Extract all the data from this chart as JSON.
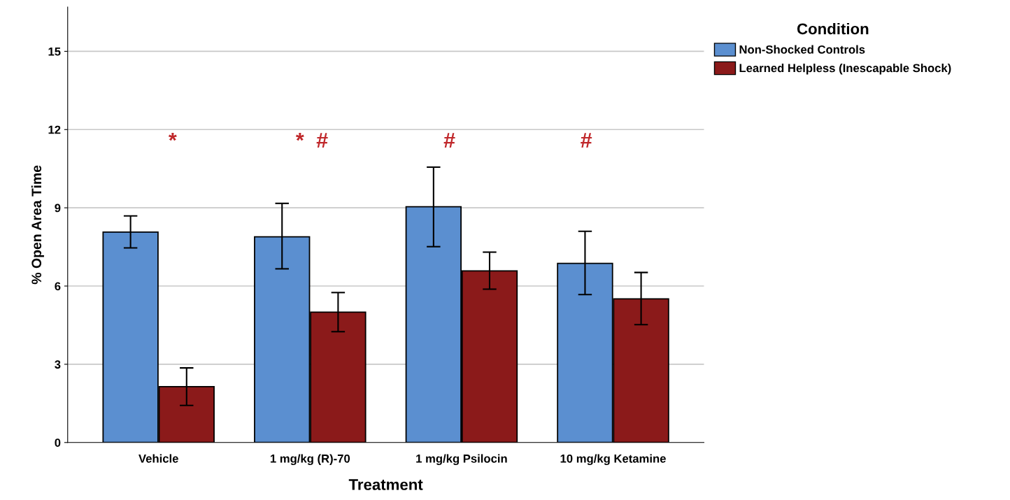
{
  "chart_data": {
    "type": "bar",
    "xlabel": "Treatment",
    "ylabel": "% Open Area Time",
    "legend_title": "Condition",
    "categories": [
      "Vehicle",
      "1 mg/kg (R)-70",
      "1 mg/kg Psilocin",
      "10 mg/kg Ketamine"
    ],
    "series": [
      {
        "name": "Non-Shocked Controls",
        "color": "#5b8fd0",
        "values": [
          8.07,
          7.89,
          9.04,
          6.87
        ],
        "errors": [
          [
            7.46,
            8.69
          ],
          [
            6.66,
            9.17
          ],
          [
            7.51,
            10.56
          ],
          [
            5.67,
            8.1
          ]
        ]
      },
      {
        "name": "Learned Helpless (Inescapable Shock)",
        "color": "#8b1a1a",
        "values": [
          2.14,
          5.0,
          6.58,
          5.51
        ],
        "errors": [
          [
            1.42,
            2.86
          ],
          [
            4.25,
            5.75
          ],
          [
            5.88,
            7.3
          ],
          [
            4.52,
            6.52
          ]
        ]
      }
    ],
    "annotations": [
      "*",
      "*",
      "#",
      "#",
      "#"
    ],
    "ylim": [
      0,
      16.7
    ],
    "yticks": [
      0,
      3,
      6,
      9,
      12,
      15
    ],
    "grid": "y",
    "legend": "top right"
  }
}
